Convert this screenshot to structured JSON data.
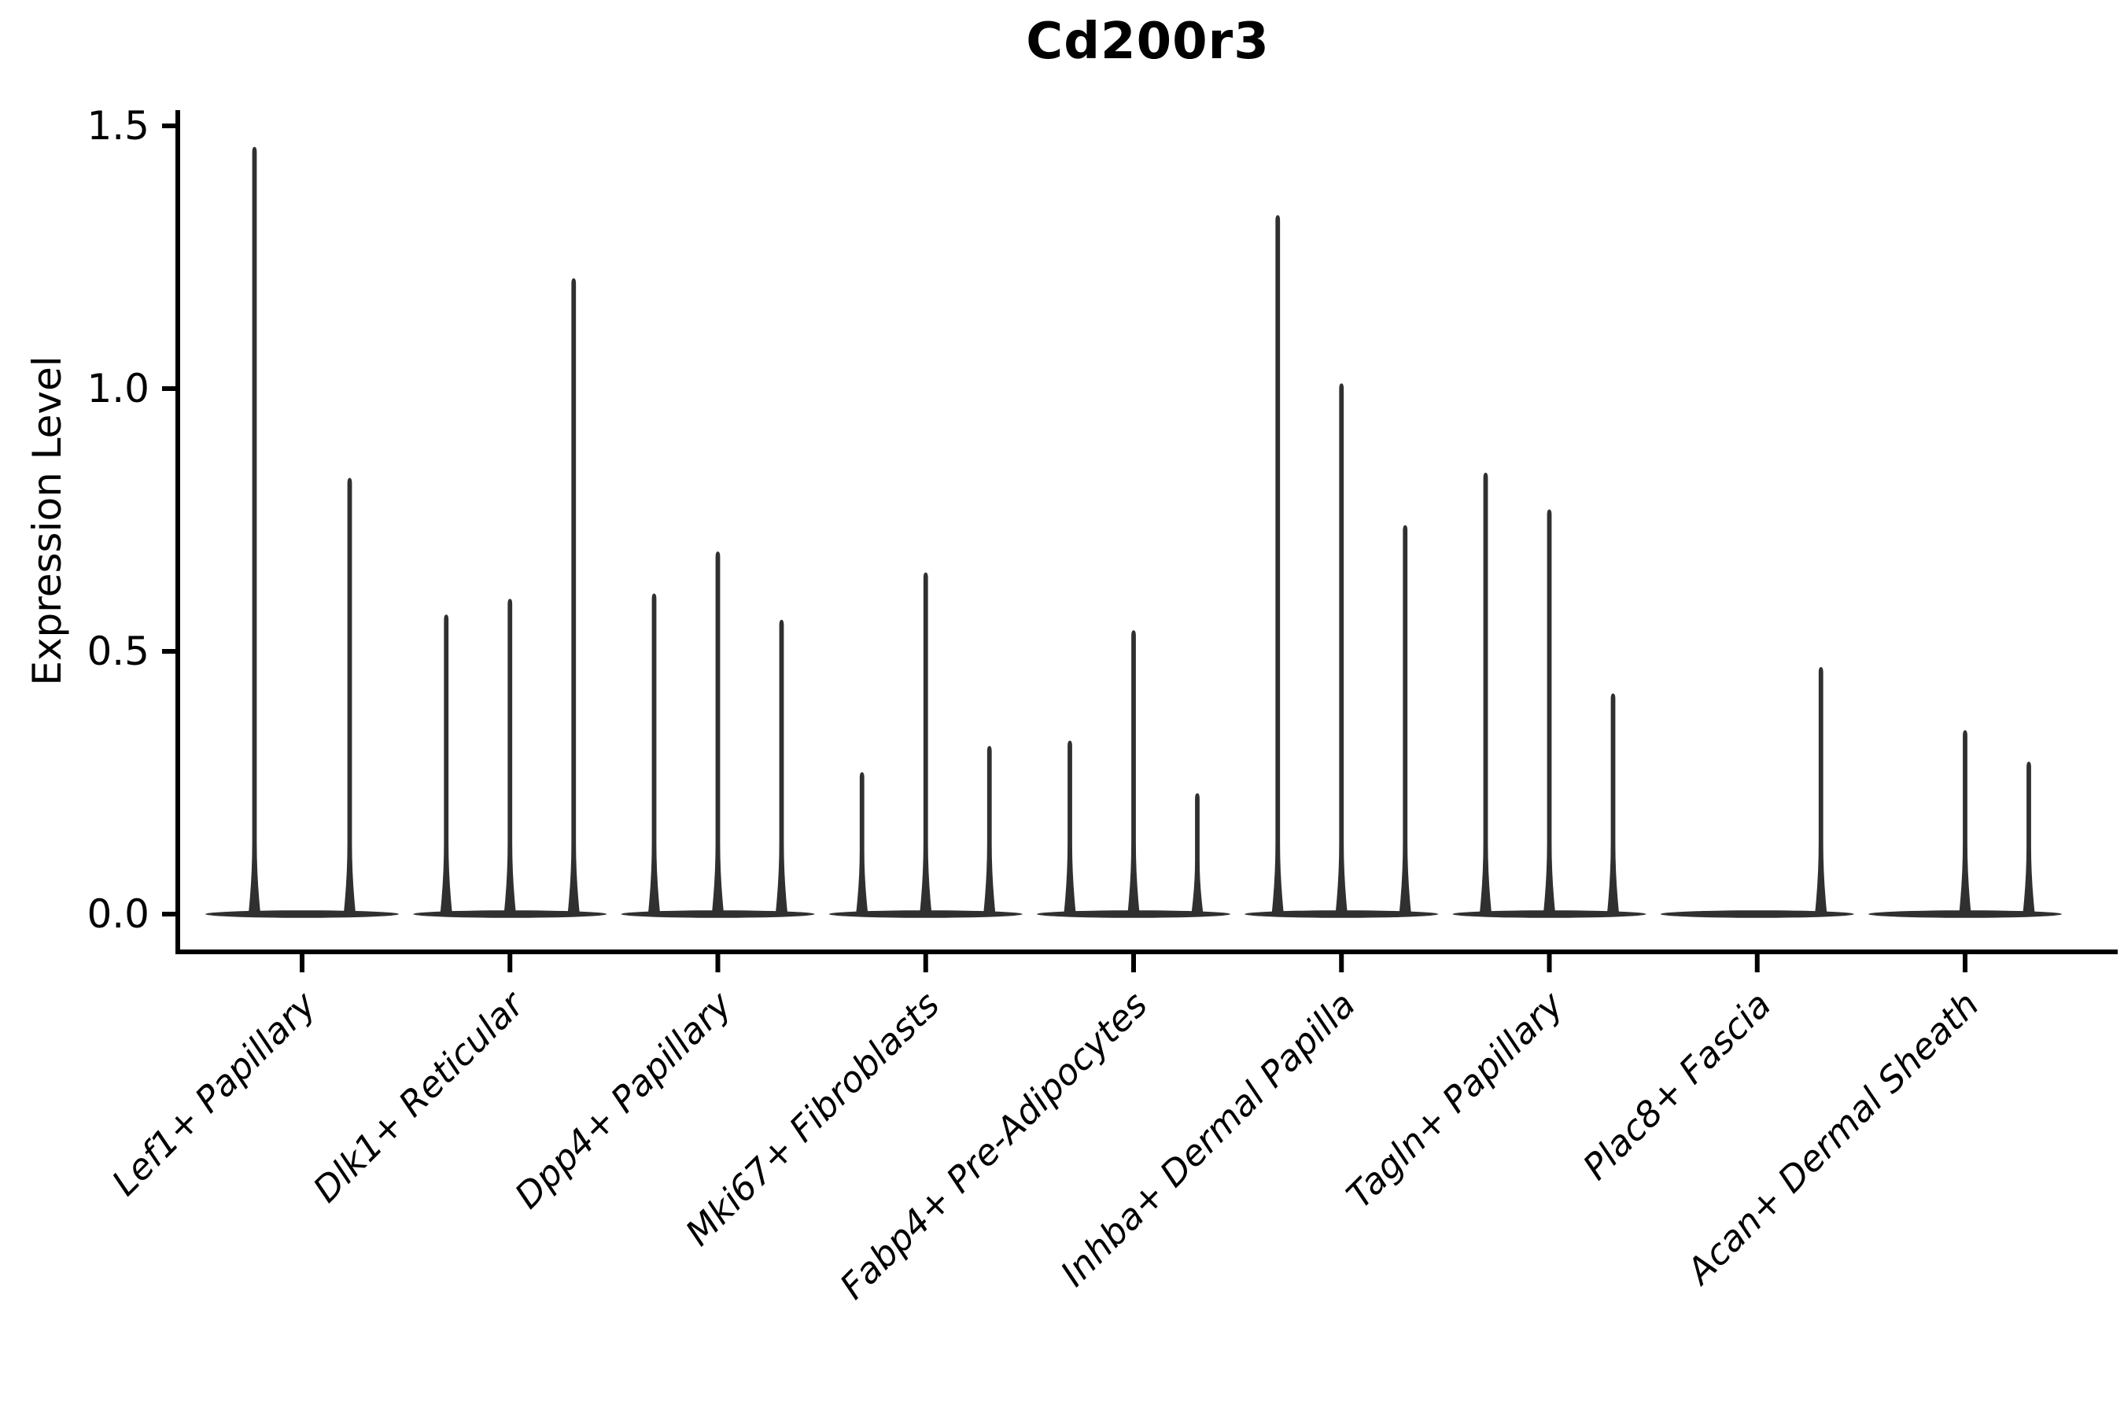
{
  "chart_data": {
    "type": "violin",
    "title": "Cd200r3",
    "ylabel": "Expression Level",
    "xlabel": "",
    "ylim": [
      0,
      1.5
    ],
    "ytick_labels": [
      "0.0",
      "0.5",
      "1.0",
      "1.5"
    ],
    "ytick_values": [
      0.0,
      0.5,
      1.0,
      1.5
    ],
    "grid": false,
    "legend": null,
    "background_color": "#ffffff",
    "axis_color": "#000000",
    "violin_color": "#303030",
    "groups": [
      {
        "label": "Lef1+ Papillary",
        "violin_peaks": [
          1.46,
          0.83
        ]
      },
      {
        "label": "Dlk1+ Reticular",
        "violin_peaks": [
          0.57,
          0.6,
          1.21
        ]
      },
      {
        "label": "Dpp4+ Papillary",
        "violin_peaks": [
          0.61,
          0.69,
          0.56
        ]
      },
      {
        "label": "Mki67+ Fibroblasts",
        "violin_peaks": [
          0.27,
          0.65,
          0.32
        ]
      },
      {
        "label": "Fabp4+ Pre-Adipocytes",
        "violin_peaks": [
          0.33,
          0.54,
          0.23
        ]
      },
      {
        "label": "Inhba+ Dermal Papilla",
        "violin_peaks": [
          1.33,
          1.01,
          0.74
        ]
      },
      {
        "label": "Tagln+ Papillary",
        "violin_peaks": [
          0.84,
          0.77,
          0.42
        ]
      },
      {
        "label": "Plac8+ Fascia",
        "violin_peaks": [
          0.0,
          0.0,
          0.47
        ]
      },
      {
        "label": "Acan+ Dermal Sheath",
        "violin_peaks": [
          0.0,
          0.35,
          0.29
        ]
      }
    ]
  }
}
